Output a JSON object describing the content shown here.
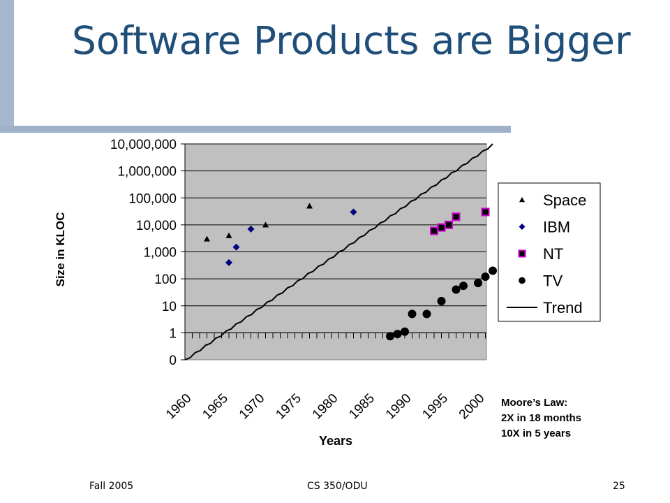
{
  "slide": {
    "title": "Software Products are Bigger",
    "footer_left": "Fall 2005",
    "footer_center": "CS 350/ODU",
    "footer_right": "25",
    "note_lines": [
      "Moore’s Law:",
      "2X in 18 months",
      "10X in 5 years"
    ]
  },
  "chart_data": {
    "type": "scatter",
    "title": "",
    "xlabel": "Years",
    "ylabel": "Size in KLOC",
    "x_ticks": [
      1960,
      1965,
      1970,
      1975,
      1980,
      1985,
      1990,
      1995,
      2000
    ],
    "xlim": [
      1960,
      2000
    ],
    "y_scale": "log",
    "y_ticks": [
      0,
      1,
      10,
      100,
      1000,
      10000,
      100000,
      1000000,
      10000000
    ],
    "y_tick_labels": [
      "0",
      "1",
      "10",
      "100",
      "1,000",
      "10,000",
      "100,000",
      "1,000,000",
      "10,000,000"
    ],
    "plot_background": "#c0c0c0",
    "grid": true,
    "legend_position": "right",
    "series": [
      {
        "name": "Space",
        "marker": "triangle",
        "color": "#000000",
        "points": [
          [
            1963,
            3000
          ],
          [
            1966,
            4000
          ],
          [
            1971,
            10000
          ],
          [
            1977,
            50000
          ]
        ]
      },
      {
        "name": "IBM",
        "marker": "diamond",
        "color": "#000080",
        "points": [
          [
            1966,
            400
          ],
          [
            1967,
            1500
          ],
          [
            1969,
            7000
          ],
          [
            1983,
            30000
          ]
        ]
      },
      {
        "name": "NT",
        "marker": "square",
        "color": "#cc00cc",
        "points": [
          [
            1994,
            6000
          ],
          [
            1995,
            8000
          ],
          [
            1996,
            10000
          ],
          [
            1997,
            20000
          ],
          [
            2001,
            30000
          ]
        ]
      },
      {
        "name": "TV",
        "marker": "circle",
        "color": "#000000",
        "points": [
          [
            1988,
            0.75
          ],
          [
            1989,
            0.9
          ],
          [
            1990,
            1.1
          ],
          [
            1991,
            5
          ],
          [
            1993,
            5
          ],
          [
            1995,
            15
          ],
          [
            1997,
            40
          ],
          [
            1998,
            55
          ],
          [
            2000,
            70
          ],
          [
            2001,
            120
          ],
          [
            2002,
            200
          ]
        ]
      },
      {
        "name": "Trend",
        "marker": "line",
        "color": "#000000",
        "line": [
          [
            1960,
            0.1
          ],
          [
            2002,
            10000000
          ]
        ]
      }
    ]
  }
}
